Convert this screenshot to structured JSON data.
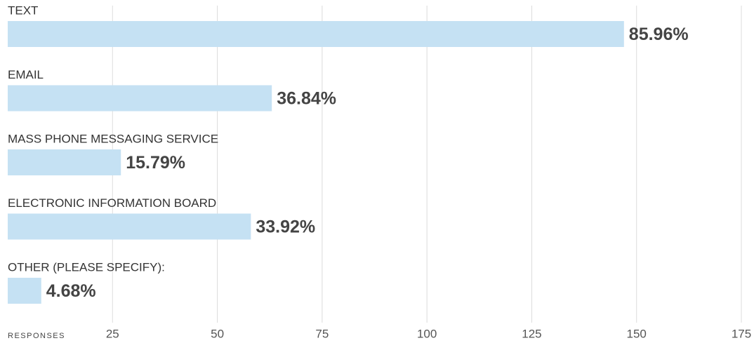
{
  "chart_data": {
    "type": "bar",
    "orientation": "horizontal",
    "categories": [
      "TEXT",
      "EMAIL",
      "MASS PHONE MESSAGING SERVICE",
      "ELECTRONIC INFORMATION BOARD",
      "OTHER (PLEASE SPECIFY):"
    ],
    "values": [
      147,
      63,
      27,
      58,
      8
    ],
    "value_labels": [
      "85.96%",
      "36.84%",
      "15.79%",
      "33.92%",
      "4.68%"
    ],
    "color": "#c5e1f3",
    "x_label": "RESPONSES",
    "xlim": [
      0,
      175
    ],
    "xticks": [
      25,
      50,
      75,
      100,
      125,
      150,
      175
    ],
    "grid": true
  }
}
